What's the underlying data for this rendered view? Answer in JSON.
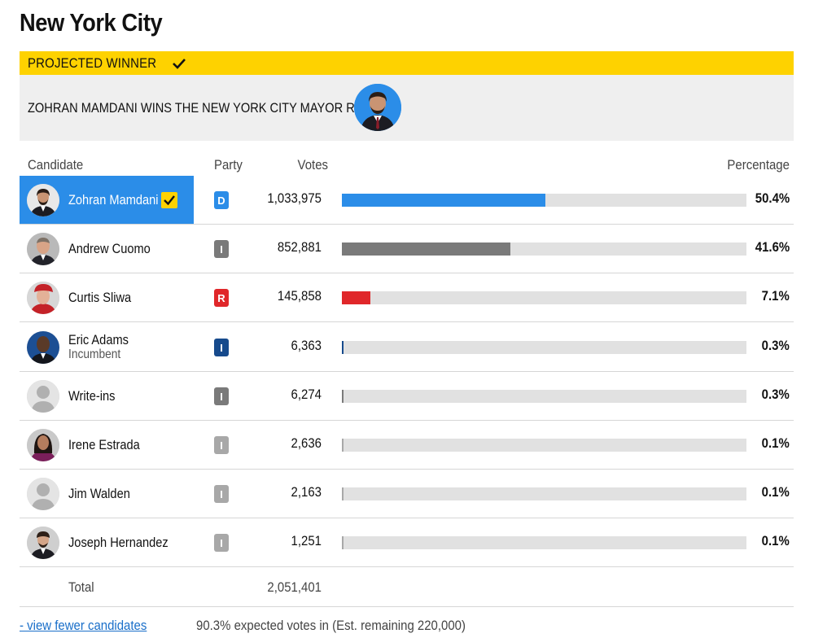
{
  "page": {
    "title": "New York City"
  },
  "winner": {
    "label": "PROJECTED WINNER",
    "headline": "ZOHRAN MAMDANI WINS THE NEW YORK CITY MAYOR RACE"
  },
  "table": {
    "headers": {
      "candidate": "Candidate",
      "party": "Party",
      "votes": "Votes",
      "percentage": "Percentage"
    },
    "rows": [
      {
        "name": "Zohran Mamdani",
        "sub": "",
        "party": "D",
        "party_color": "#2b8de8",
        "votes": "1,033,975",
        "pct": "50.4%",
        "share": 50.4,
        "bar_color": "#2b8de8",
        "winner": true
      },
      {
        "name": "Andrew Cuomo",
        "sub": "",
        "party": "I",
        "party_color": "#7a7a7a",
        "votes": "852,881",
        "pct": "41.6%",
        "share": 41.6,
        "bar_color": "#7a7a7a",
        "winner": false
      },
      {
        "name": "Curtis Sliwa",
        "sub": "",
        "party": "R",
        "party_color": "#e0272a",
        "votes": "145,858",
        "pct": "7.1%",
        "share": 7.1,
        "bar_color": "#e0272a",
        "winner": false
      },
      {
        "name": "Eric Adams",
        "sub": "Incumbent",
        "party": "I",
        "party_color": "#164a8c",
        "votes": "6,363",
        "pct": "0.3%",
        "share": 0.3,
        "bar_color": "#164a8c",
        "winner": false
      },
      {
        "name": "Write-ins",
        "sub": "",
        "party": "I",
        "party_color": "#7a7a7a",
        "votes": "6,274",
        "pct": "0.3%",
        "share": 0.3,
        "bar_color": "#7a7a7a",
        "winner": false
      },
      {
        "name": "Irene Estrada",
        "sub": "",
        "party": "I",
        "party_color": "#a8a8a8",
        "votes": "2,636",
        "pct": "0.1%",
        "share": 0.1,
        "bar_color": "#a8a8a8",
        "winner": false
      },
      {
        "name": "Jim Walden",
        "sub": "",
        "party": "I",
        "party_color": "#a8a8a8",
        "votes": "2,163",
        "pct": "0.1%",
        "share": 0.1,
        "bar_color": "#a8a8a8",
        "winner": false
      },
      {
        "name": "Joseph Hernandez",
        "sub": "",
        "party": "I",
        "party_color": "#a8a8a8",
        "votes": "1,251",
        "pct": "0.1%",
        "share": 0.1,
        "bar_color": "#a8a8a8",
        "winner": false
      }
    ],
    "total_label": "Total",
    "total_votes": "2,051,401"
  },
  "footer": {
    "toggle_link": "- view fewer candidates",
    "note": "90.3% expected votes in (Est. remaining 220,000)"
  },
  "colors": {
    "accent_yellow": "#fed200",
    "winner_blue": "#2b8de8"
  }
}
